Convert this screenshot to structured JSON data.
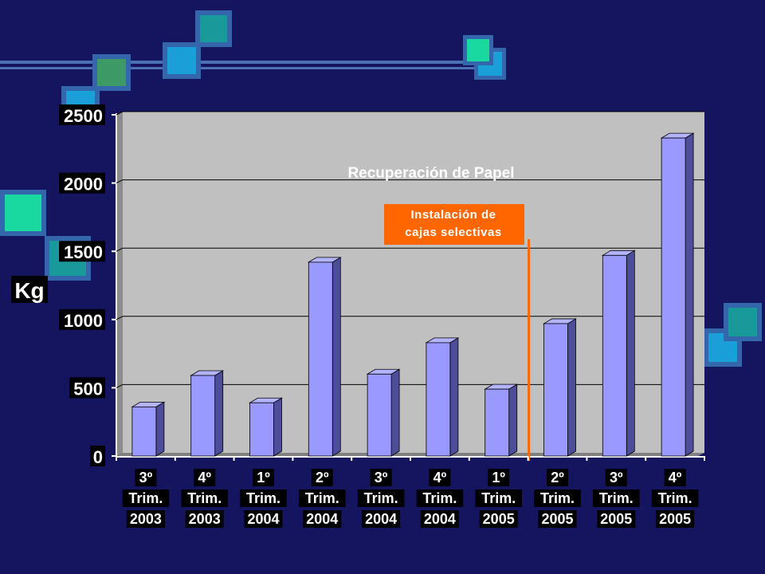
{
  "chart_data": {
    "type": "bar",
    "title": "Recuperación de Papel",
    "ylabel": "Kg",
    "xlabel": "",
    "ylim": [
      0,
      2500
    ],
    "yticks": [
      "0",
      "500",
      "1000",
      "1500",
      "2000",
      "2500"
    ],
    "grid": true,
    "categories": [
      [
        "3º",
        "Trim.",
        "2003"
      ],
      [
        "4º",
        "Trim.",
        "2003"
      ],
      [
        "1º",
        "Trim.",
        "2004"
      ],
      [
        "2º",
        "Trim.",
        "2004"
      ],
      [
        "3º",
        "Trim.",
        "2004"
      ],
      [
        "4º",
        "Trim.",
        "2004"
      ],
      [
        "1º",
        "Trim.",
        "2005"
      ],
      [
        "2º",
        "Trim.",
        "2005"
      ],
      [
        "3º",
        "Trim.",
        "2005"
      ],
      [
        "4º",
        "Trim.",
        "2005"
      ]
    ],
    "values": [
      360,
      590,
      390,
      1420,
      600,
      830,
      490,
      970,
      1470,
      2330
    ],
    "annotation": {
      "lines": [
        "Instalación de",
        "cajas selectivas"
      ],
      "between_categories": [
        6,
        7
      ]
    },
    "colors": {
      "bar_front": "#9999ff",
      "bar_side": "#4d4d99",
      "bar_top": "#b3b3ff",
      "plot_bg": "#c0c0c0",
      "background": "#14145f",
      "annotation": "#ff6600"
    }
  }
}
